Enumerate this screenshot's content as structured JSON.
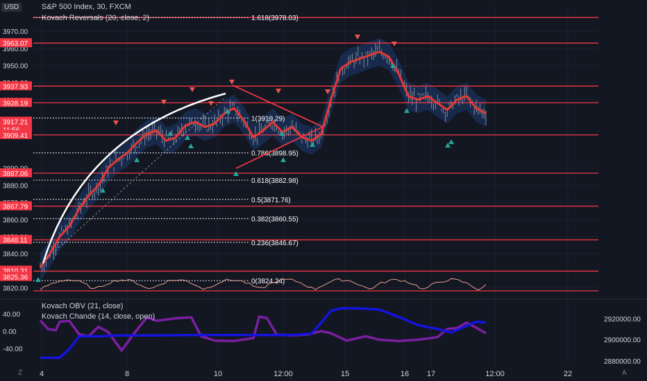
{
  "header": {
    "currency": "USD",
    "symbol_line": "S&P 500 Index, 30, FXCM",
    "indicator_main": "Kovach Reversals (20, close, 2)",
    "indicator_lower_1": "Kovach OBV (21, close)",
    "indicator_lower_2": "Kovach Chande (14, close, open)"
  },
  "footer": {
    "left_icon": "Z",
    "right_icon": "A"
  },
  "colors": {
    "background": "#131722",
    "grid": "#1e2230",
    "line_red": "#f23645",
    "ma_red": "#e53935",
    "band_blue": "#1e3a6e",
    "obv_blue": "#1414e0",
    "chande_purple": "#7b1fa2",
    "text": "#d1d4dc",
    "arrow_up": "#26a69a",
    "arrow_down": "#ef5350"
  },
  "chart_data": {
    "type": "line",
    "title": "S&P 500 Index, 30, FXCM",
    "x_ticks": [
      "4",
      "8",
      "10",
      "12:00",
      "15",
      "16",
      "17",
      "12:00",
      "22"
    ],
    "y_ticks": [
      3820,
      3830,
      3840,
      3850,
      3860,
      3870,
      3880,
      3890,
      3930,
      3940,
      3950,
      3960,
      3970
    ],
    "ylim": [
      3815,
      3985
    ],
    "price_labels": [
      {
        "label": "3963.07",
        "value": 3963.07
      },
      {
        "label": "3937.93",
        "value": 3937.93
      },
      {
        "label": "3928.19",
        "value": 3928.19
      },
      {
        "label": "3917.21",
        "value": 3917.21
      },
      {
        "label": "11:56",
        "value": 3912.6
      },
      {
        "label": "3909.41",
        "value": 3909.41
      },
      {
        "label": "3887.06",
        "value": 3887.06
      },
      {
        "label": "3867.79",
        "value": 3867.79
      },
      {
        "label": "3848.11",
        "value": 3848.11
      },
      {
        "label": "3810.31",
        "value": 3830.2
      },
      {
        "label": "3825.36",
        "value": 3826.5
      }
    ],
    "horizontal_lines": [
      3978.0,
      3963.07,
      3937.93,
      3928.19,
      3909.41,
      3887.06,
      3867.79,
      3848.11,
      3829.8,
      3818.3
    ],
    "fibonacci": [
      {
        "label": "1.618(3978.03)",
        "value": 3978.03
      },
      {
        "label": "1(3919.29)",
        "value": 3919.29
      },
      {
        "label": "0.786(3898.95)",
        "value": 3898.95
      },
      {
        "label": "0.618(3882.98)",
        "value": 3882.98
      },
      {
        "label": "0.5(3871.76)",
        "value": 3871.76
      },
      {
        "label": "0.382(3860.55)",
        "value": 3860.55
      },
      {
        "label": "0.236(3846.67)",
        "value": 3846.67
      },
      {
        "label": "0(3824.24)",
        "value": 3824.24
      }
    ],
    "series": [
      {
        "values": [
          [
            0,
            3832
          ],
          [
            5,
            3840
          ],
          [
            10,
            3850
          ],
          [
            15,
            3856
          ],
          [
            20,
            3866
          ],
          [
            25,
            3874
          ],
          [
            30,
            3880
          ],
          [
            35,
            3890
          ],
          [
            40,
            3895
          ],
          [
            45,
            3899
          ],
          [
            50,
            3905
          ],
          [
            55,
            3910
          ],
          [
            60,
            3912
          ],
          [
            65,
            3906
          ],
          [
            70,
            3908
          ],
          [
            75,
            3915
          ],
          [
            80,
            3917
          ],
          [
            85,
            3914
          ],
          [
            90,
            3916
          ],
          [
            95,
            3922
          ],
          [
            100,
            3925
          ],
          [
            105,
            3918
          ],
          [
            110,
            3908
          ],
          [
            115,
            3912
          ],
          [
            120,
            3917
          ],
          [
            125,
            3911
          ],
          [
            130,
            3914
          ],
          [
            135,
            3908
          ],
          [
            140,
            3906
          ],
          [
            145,
            3910
          ],
          [
            150,
            3930
          ],
          [
            155,
            3948
          ],
          [
            160,
            3952
          ],
          [
            165,
            3954
          ],
          [
            170,
            3956
          ],
          [
            175,
            3958
          ],
          [
            180,
            3955
          ],
          [
            185,
            3945
          ],
          [
            190,
            3932
          ],
          [
            195,
            3930
          ],
          [
            200,
            3932
          ],
          [
            205,
            3928
          ],
          [
            210,
            3924
          ],
          [
            215,
            3930
          ],
          [
            220,
            3932
          ],
          [
            225,
            3925
          ],
          [
            230,
            3922
          ]
        ]
      }
    ],
    "lower_panel": {
      "left_ticks": [
        "40.00",
        "0.00",
        "-40.00"
      ],
      "left_tick_values": [
        40,
        0,
        -40
      ],
      "right_ticks": [
        "2920000.00",
        "2900000.00",
        "2880000.00"
      ],
      "obv": [
        [
          0,
          -62
        ],
        [
          10,
          -62
        ],
        [
          15,
          -42
        ],
        [
          20,
          -12
        ],
        [
          30,
          -12
        ],
        [
          40,
          -10
        ],
        [
          60,
          -10
        ],
        [
          80,
          -9
        ],
        [
          100,
          -9
        ],
        [
          130,
          -9
        ],
        [
          140,
          -6
        ],
        [
          145,
          20
        ],
        [
          150,
          47
        ],
        [
          155,
          53
        ],
        [
          165,
          53
        ],
        [
          175,
          50
        ],
        [
          185,
          33
        ],
        [
          195,
          14
        ],
        [
          205,
          5
        ],
        [
          212,
          -3
        ],
        [
          220,
          12
        ],
        [
          225,
          22
        ],
        [
          230,
          20
        ]
      ],
      "chande": [
        [
          0,
          25
        ],
        [
          4,
          5
        ],
        [
          8,
          2
        ],
        [
          10,
          22
        ],
        [
          15,
          24
        ],
        [
          20,
          -7
        ],
        [
          25,
          -12
        ],
        [
          30,
          10
        ],
        [
          35,
          -2
        ],
        [
          42,
          -45
        ],
        [
          48,
          -8
        ],
        [
          55,
          32
        ],
        [
          60,
          24
        ],
        [
          70,
          30
        ],
        [
          78,
          32
        ],
        [
          83,
          -12
        ],
        [
          90,
          -22
        ],
        [
          100,
          -23
        ],
        [
          110,
          -16
        ],
        [
          113,
          34
        ],
        [
          117,
          30
        ],
        [
          122,
          -8
        ],
        [
          130,
          -10
        ],
        [
          138,
          -8
        ],
        [
          145,
          0
        ],
        [
          150,
          -5
        ],
        [
          158,
          -22
        ],
        [
          168,
          -12
        ],
        [
          175,
          -20
        ],
        [
          185,
          -23
        ],
        [
          195,
          -20
        ],
        [
          205,
          -14
        ],
        [
          210,
          5
        ],
        [
          215,
          7
        ],
        [
          220,
          20
        ],
        [
          225,
          8
        ],
        [
          230,
          -5
        ]
      ]
    }
  }
}
